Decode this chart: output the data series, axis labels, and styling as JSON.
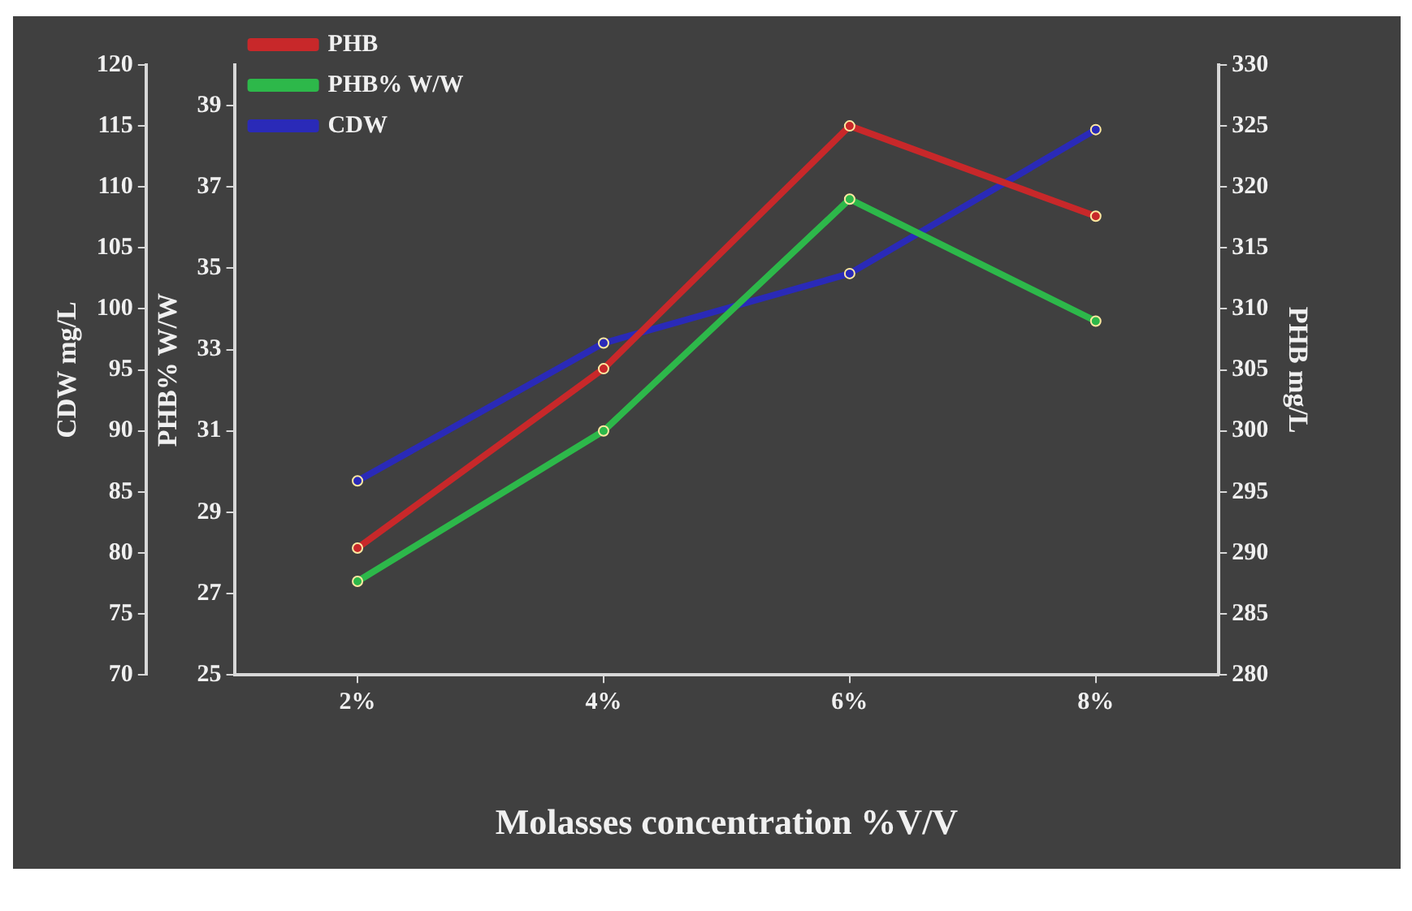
{
  "chart_data": {
    "type": "line",
    "xlabel": "Molasses concentration %V/V",
    "ylabel": "CDW mg/L",
    "y2label": "PHB mg/L",
    "y3label": "PHB% W/W",
    "categories": [
      "2%",
      "4%",
      "6%",
      "8%"
    ],
    "series": [
      {
        "name": "PHB",
        "color": "#c8282a",
        "values": [
          290.4,
          305.1,
          325,
          317.6
        ],
        "axis": "y2"
      },
      {
        "name": "PHB% W/W",
        "color": "#2db84a",
        "values": [
          27.3,
          31.0,
          36.7,
          33.7
        ],
        "axis": "y3"
      },
      {
        "name": "CDW",
        "color": "#2a2ab8",
        "values": [
          85.9,
          97.2,
          102.9,
          114.7
        ],
        "axis": "y"
      }
    ],
    "ylim": [
      70,
      120
    ],
    "yticks": [
      70,
      75,
      80,
      85,
      90,
      95,
      100,
      105,
      110,
      115,
      120
    ],
    "y2lim": [
      280,
      330
    ],
    "y2ticks": [
      280,
      285,
      290,
      295,
      300,
      305,
      310,
      315,
      320,
      325,
      330
    ],
    "y3lim": [
      25,
      40
    ],
    "y3ticks": [
      25,
      27,
      29,
      31,
      33,
      35,
      37,
      39
    ],
    "legend": "top left",
    "marker": "circle",
    "line_style": "solid",
    "grid": false
  }
}
